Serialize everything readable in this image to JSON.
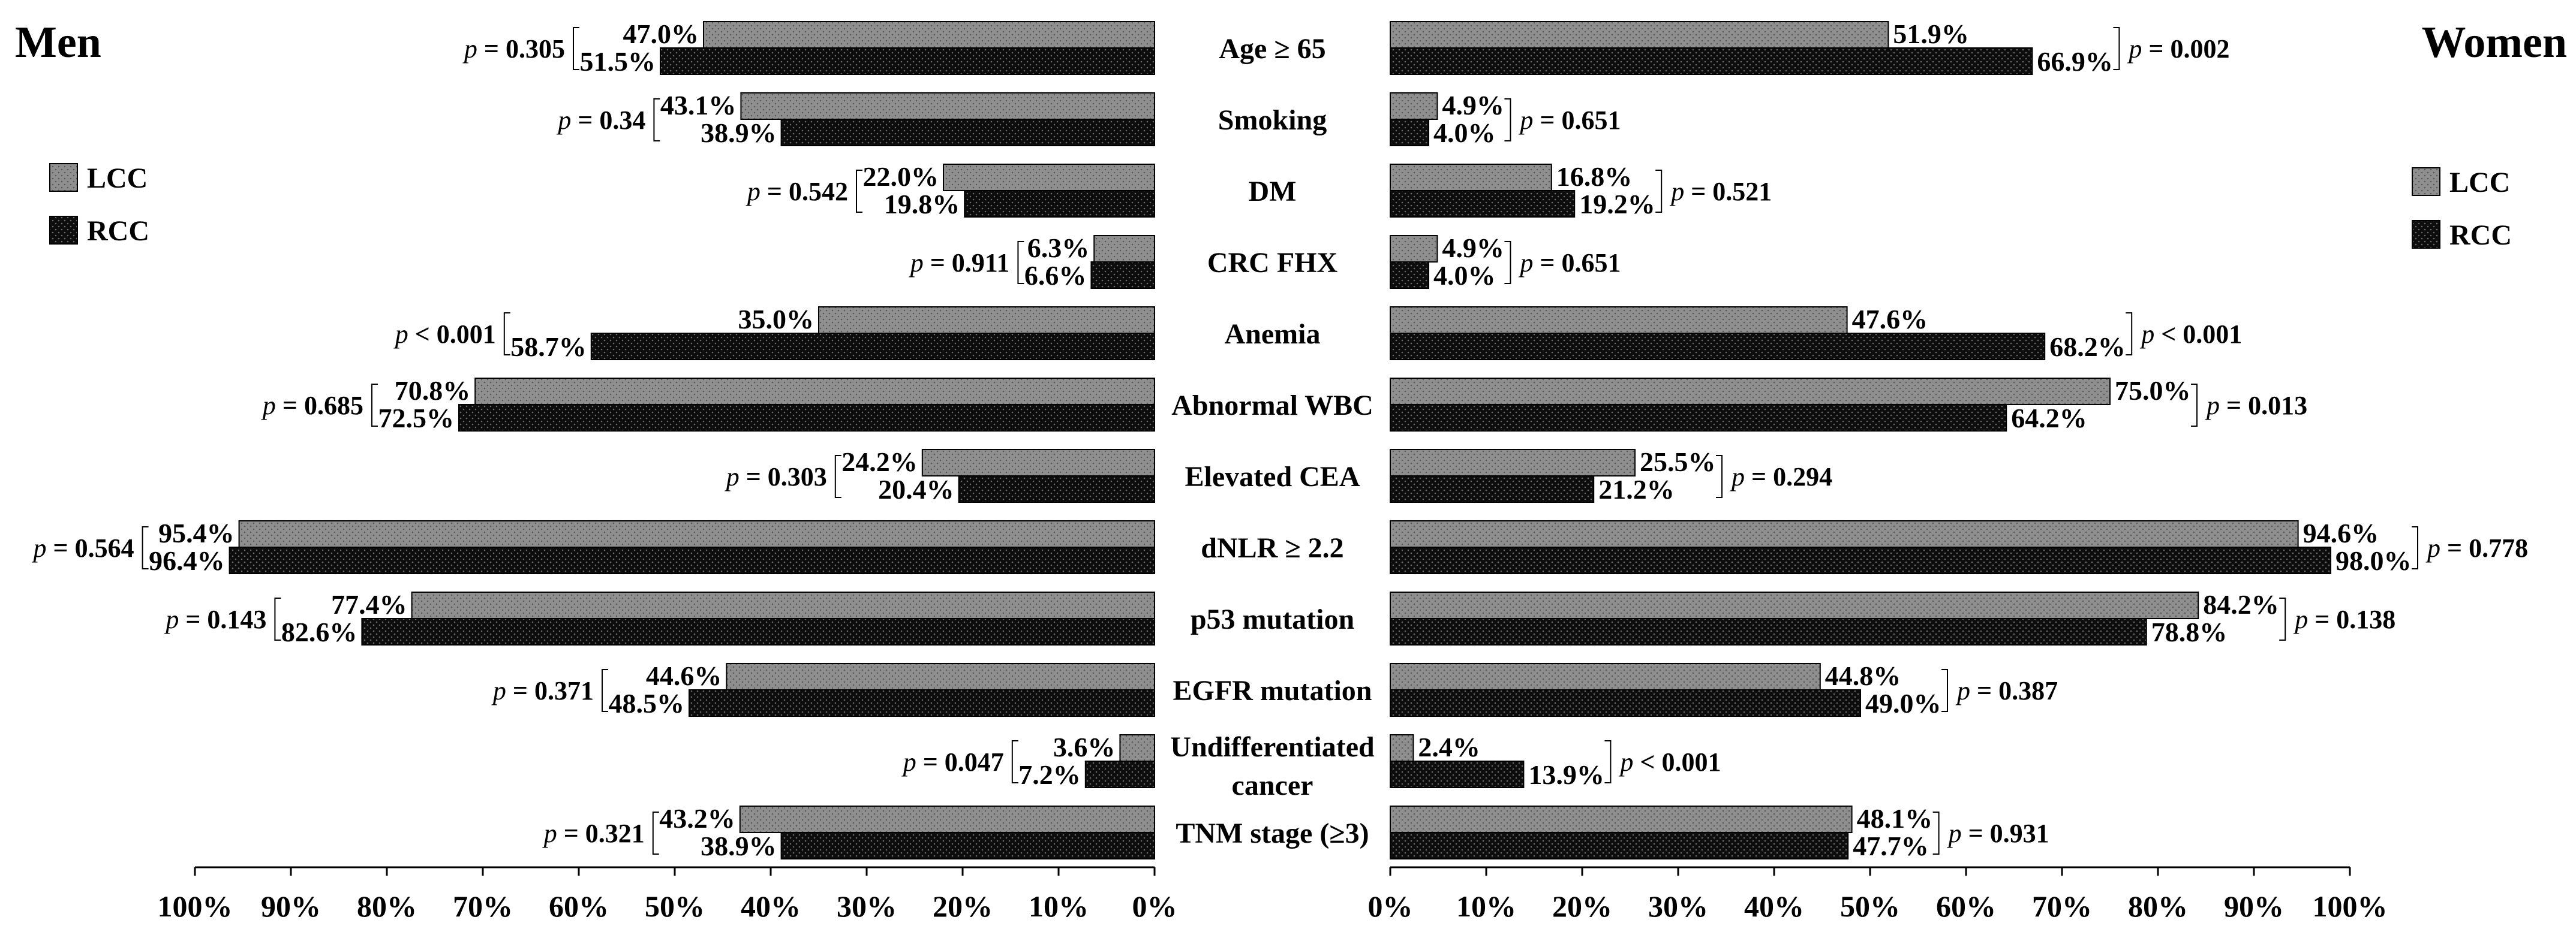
{
  "chart_data": {
    "type": "bar",
    "orientation": "horizontal-butterfly",
    "unit": "%",
    "left_title": "Men",
    "right_title": "Women",
    "categories": [
      "Age ≥ 65",
      "Smoking",
      "DM",
      "CRC FHX",
      "Anemia",
      "Abnormal WBC",
      "Elevated CEA",
      "dNLR ≥ 2.2",
      "p53 mutation",
      "EGFR mutation",
      "Undifferentiated cancer",
      "TNM stage (≥3)"
    ],
    "category_lines": [
      [
        "Age ≥ 65"
      ],
      [
        "Smoking"
      ],
      [
        "DM"
      ],
      [
        "CRC FHX"
      ],
      [
        "Anemia"
      ],
      [
        "Abnormal WBC"
      ],
      [
        "Elevated CEA"
      ],
      [
        "dNLR ≥ 2.2"
      ],
      [
        "p53 mutation"
      ],
      [
        "EGFR mutation"
      ],
      [
        "Undifferentiated",
        "cancer"
      ],
      [
        "TNM stage (≥3)"
      ]
    ],
    "series": [
      {
        "name": "LCC",
        "color": "#8c8c8c"
      },
      {
        "name": "RCC",
        "color": "#111111"
      }
    ],
    "legend": {
      "labels": [
        "LCC",
        "RCC"
      ],
      "placement": "left and right, upper"
    },
    "men": {
      "LCC": [
        47.0,
        43.1,
        22.0,
        6.3,
        35.0,
        70.8,
        24.2,
        95.4,
        77.4,
        44.6,
        3.6,
        43.2
      ],
      "RCC": [
        51.5,
        38.9,
        19.8,
        6.6,
        58.7,
        72.5,
        20.4,
        96.4,
        82.6,
        48.5,
        7.2,
        38.9
      ],
      "LCC_labels": [
        "47.0%",
        "43.1%",
        "22.0%",
        "6.3%",
        "35.0%",
        "70.8%",
        "24.2%",
        "95.4%",
        "77.4%",
        "44.6%",
        "3.6%",
        "43.2%"
      ],
      "RCC_labels": [
        "51.5%",
        "38.9%",
        "19.8%",
        "6.6%",
        "58.7%",
        "72.5%",
        "20.4%",
        "96.4%",
        "82.6%",
        "48.5%",
        "7.2%",
        "38.9%"
      ],
      "p_values": [
        "= 0.305",
        "= 0.34",
        "= 0.542",
        "= 0.911",
        "< 0.001",
        "= 0.685",
        "= 0.303",
        "= 0.564",
        "= 0.143",
        "= 0.371",
        "= 0.047",
        "= 0.321"
      ]
    },
    "women": {
      "LCC": [
        51.9,
        4.9,
        16.8,
        4.9,
        47.6,
        75.0,
        25.5,
        94.6,
        84.2,
        44.8,
        2.4,
        48.1
      ],
      "RCC": [
        66.9,
        4.0,
        19.2,
        4.0,
        68.2,
        64.2,
        21.2,
        98.0,
        78.8,
        49.0,
        13.9,
        47.7
      ],
      "LCC_labels": [
        "51.9%",
        "4.9%",
        "16.8%",
        "4.9%",
        "47.6%",
        "75.0%",
        "25.5%",
        "94.6%",
        "84.2%",
        "44.8%",
        "2.4%",
        "48.1%"
      ],
      "RCC_labels": [
        "66.9%",
        "4.0%",
        "19.2%",
        "4.0%",
        "68.2%",
        "64.2%",
        "21.2%",
        "98.0%",
        "78.8%",
        "49.0%",
        "13.9%",
        "47.7%"
      ],
      "p_values": [
        "= 0.002",
        "= 0.651",
        "= 0.521",
        "= 0.651",
        "< 0.001",
        "= 0.013",
        "= 0.294",
        "= 0.778",
        "= 0.138",
        "= 0.387",
        "< 0.001",
        "= 0.931"
      ]
    },
    "p_symbol": "p",
    "x_range": [
      0,
      100
    ],
    "left_ticks": [
      "100%",
      "90%",
      "80%",
      "70%",
      "60%",
      "50%",
      "40%",
      "30%",
      "20%",
      "10%",
      "0%"
    ],
    "right_ticks": [
      "0%",
      "10%",
      "20%",
      "30%",
      "40%",
      "50%",
      "60%",
      "70%",
      "80%",
      "90%",
      "100%"
    ]
  }
}
